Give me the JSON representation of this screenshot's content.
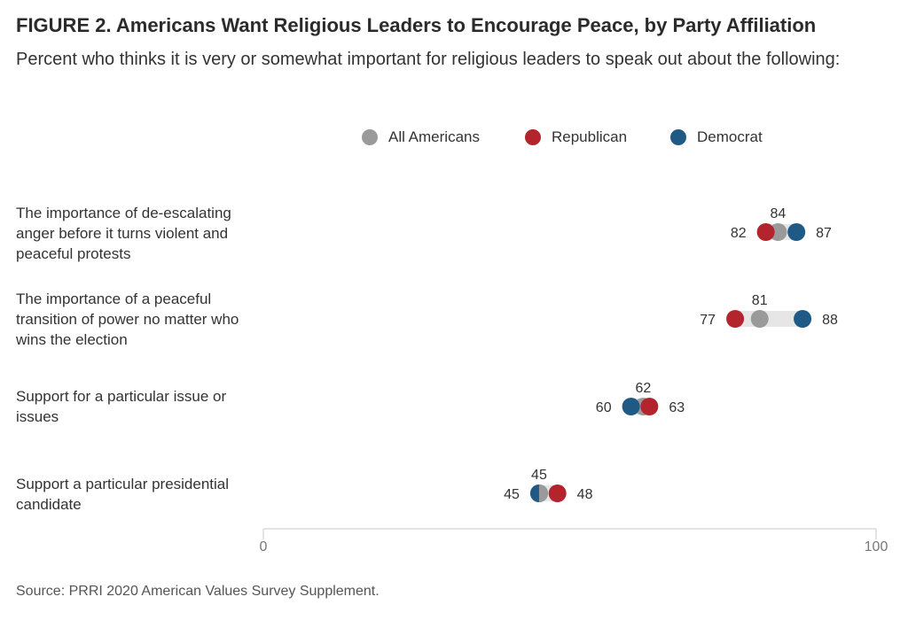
{
  "header": {
    "title": "FIGURE 2.  Americans Want Religious Leaders to Encourage Peace, by Party Affiliation",
    "subtitle": "Percent who thinks it is very or somewhat important for religious leaders to speak out about the following:"
  },
  "footer": {
    "source": "Source: PRRI 2020 American Values Survey Supplement."
  },
  "colors": {
    "all": "#9a9a9a",
    "republican": "#b3242c",
    "democrat": "#1f5a87",
    "range": "#e6e6e6",
    "axis": "#e3e3e3"
  },
  "chart_data": {
    "type": "dot",
    "title": "FIGURE 2.  Americans Want Religious Leaders to Encourage Peace, by Party Affiliation",
    "subtitle": "Percent who thinks it is very or somewhat important for religious leaders to speak out about the following:",
    "xlim": [
      0,
      100
    ],
    "x_ticks": [
      "0",
      "100"
    ],
    "legend_position": "top-center",
    "grid": false,
    "series": [
      {
        "key": "all",
        "name": "All Americans"
      },
      {
        "key": "republican",
        "name": "Republican"
      },
      {
        "key": "democrat",
        "name": "Democrat"
      }
    ],
    "categories": [
      {
        "label": "The importance of de-escalating anger before it turns violent and peaceful protests",
        "all": 84,
        "republican": 82,
        "democrat": 87
      },
      {
        "label": "The importance of a peaceful transition of power no matter who wins the election",
        "all": 81,
        "republican": 77,
        "democrat": 88
      },
      {
        "label": "Support for a particular issue or issues",
        "all": 62,
        "republican": 63,
        "democrat": 60
      },
      {
        "label": "Support a particular presidential candidate",
        "all": 45,
        "republican": 48,
        "democrat": 45
      }
    ]
  }
}
